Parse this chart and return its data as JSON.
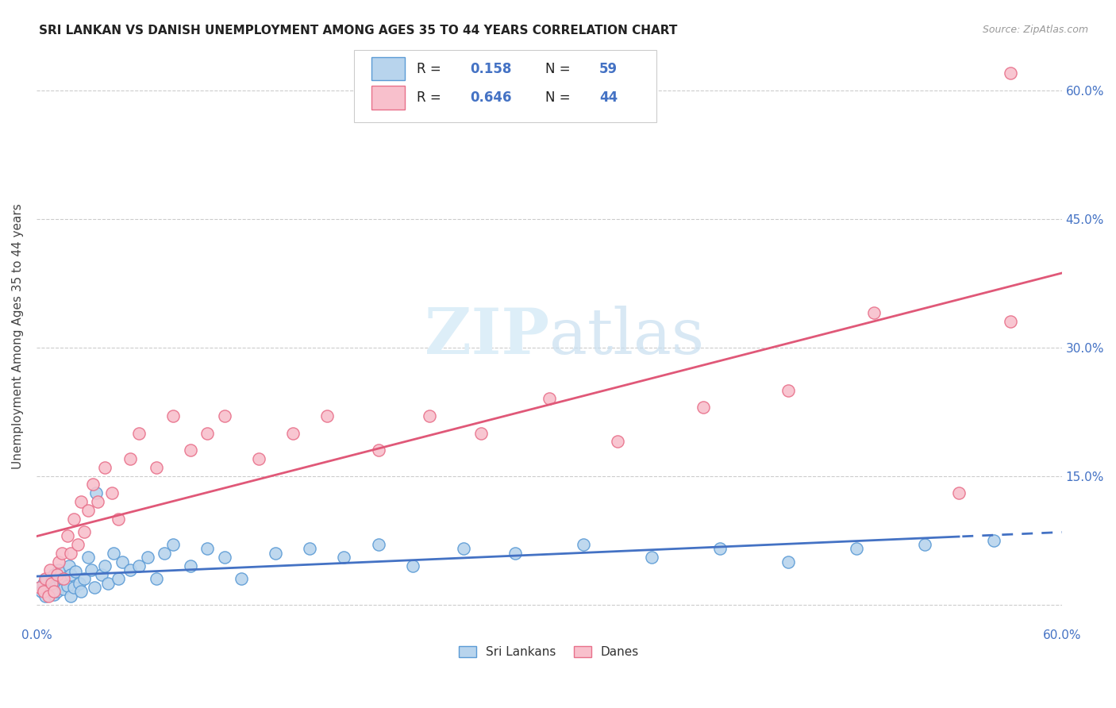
{
  "title": "SRI LANKAN VS DANISH UNEMPLOYMENT AMONG AGES 35 TO 44 YEARS CORRELATION CHART",
  "source": "Source: ZipAtlas.com",
  "ylabel": "Unemployment Among Ages 35 to 44 years",
  "xlim": [
    0.0,
    0.6
  ],
  "ylim": [
    -0.025,
    0.65
  ],
  "x_ticks": [
    0.0,
    0.1,
    0.2,
    0.3,
    0.4,
    0.5,
    0.6
  ],
  "x_tick_labels": [
    "0.0%",
    "",
    "",
    "",
    "",
    "",
    "60.0%"
  ],
  "y_ticks": [
    0.0,
    0.15,
    0.3,
    0.45,
    0.6
  ],
  "y_tick_labels": [
    "",
    "15.0%",
    "30.0%",
    "45.0%",
    "60.0%"
  ],
  "sri_lankans_R": 0.158,
  "sri_lankans_N": 59,
  "danes_R": 0.646,
  "danes_N": 44,
  "sri_lankan_fill": "#b8d4ed",
  "sri_lankan_edge": "#5b9bd5",
  "dane_fill": "#f8c0cc",
  "dane_edge": "#e8708a",
  "sri_lankan_line_color": "#4472c4",
  "dane_line_color": "#e05878",
  "watermark_color": "#ddeef8",
  "background_color": "#ffffff",
  "sri_lankans_x": [
    0.002,
    0.003,
    0.004,
    0.005,
    0.006,
    0.007,
    0.008,
    0.009,
    0.01,
    0.01,
    0.011,
    0.012,
    0.013,
    0.014,
    0.015,
    0.016,
    0.018,
    0.019,
    0.02,
    0.02,
    0.022,
    0.023,
    0.025,
    0.026,
    0.028,
    0.03,
    0.032,
    0.034,
    0.035,
    0.038,
    0.04,
    0.042,
    0.045,
    0.048,
    0.05,
    0.055,
    0.06,
    0.065,
    0.07,
    0.075,
    0.08,
    0.09,
    0.1,
    0.11,
    0.12,
    0.14,
    0.16,
    0.18,
    0.2,
    0.22,
    0.25,
    0.28,
    0.32,
    0.36,
    0.4,
    0.44,
    0.48,
    0.52,
    0.56
  ],
  "sri_lankans_y": [
    0.02,
    0.015,
    0.025,
    0.01,
    0.03,
    0.018,
    0.022,
    0.028,
    0.012,
    0.035,
    0.02,
    0.015,
    0.04,
    0.025,
    0.03,
    0.018,
    0.022,
    0.045,
    0.01,
    0.035,
    0.02,
    0.038,
    0.025,
    0.015,
    0.03,
    0.055,
    0.04,
    0.02,
    0.13,
    0.035,
    0.045,
    0.025,
    0.06,
    0.03,
    0.05,
    0.04,
    0.045,
    0.055,
    0.03,
    0.06,
    0.07,
    0.045,
    0.065,
    0.055,
    0.03,
    0.06,
    0.065,
    0.055,
    0.07,
    0.045,
    0.065,
    0.06,
    0.07,
    0.055,
    0.065,
    0.05,
    0.065,
    0.07,
    0.075
  ],
  "danes_x": [
    0.002,
    0.004,
    0.005,
    0.007,
    0.008,
    0.009,
    0.01,
    0.012,
    0.013,
    0.015,
    0.016,
    0.018,
    0.02,
    0.022,
    0.024,
    0.026,
    0.028,
    0.03,
    0.033,
    0.036,
    0.04,
    0.044,
    0.048,
    0.055,
    0.06,
    0.07,
    0.08,
    0.09,
    0.1,
    0.11,
    0.13,
    0.15,
    0.17,
    0.2,
    0.23,
    0.26,
    0.3,
    0.34,
    0.39,
    0.44,
    0.49,
    0.54,
    0.57,
    0.57
  ],
  "danes_y": [
    0.02,
    0.015,
    0.03,
    0.01,
    0.04,
    0.025,
    0.015,
    0.035,
    0.05,
    0.06,
    0.03,
    0.08,
    0.06,
    0.1,
    0.07,
    0.12,
    0.085,
    0.11,
    0.14,
    0.12,
    0.16,
    0.13,
    0.1,
    0.17,
    0.2,
    0.16,
    0.22,
    0.18,
    0.2,
    0.22,
    0.17,
    0.2,
    0.22,
    0.18,
    0.22,
    0.2,
    0.24,
    0.19,
    0.23,
    0.25,
    0.34,
    0.13,
    0.33,
    0.62
  ]
}
